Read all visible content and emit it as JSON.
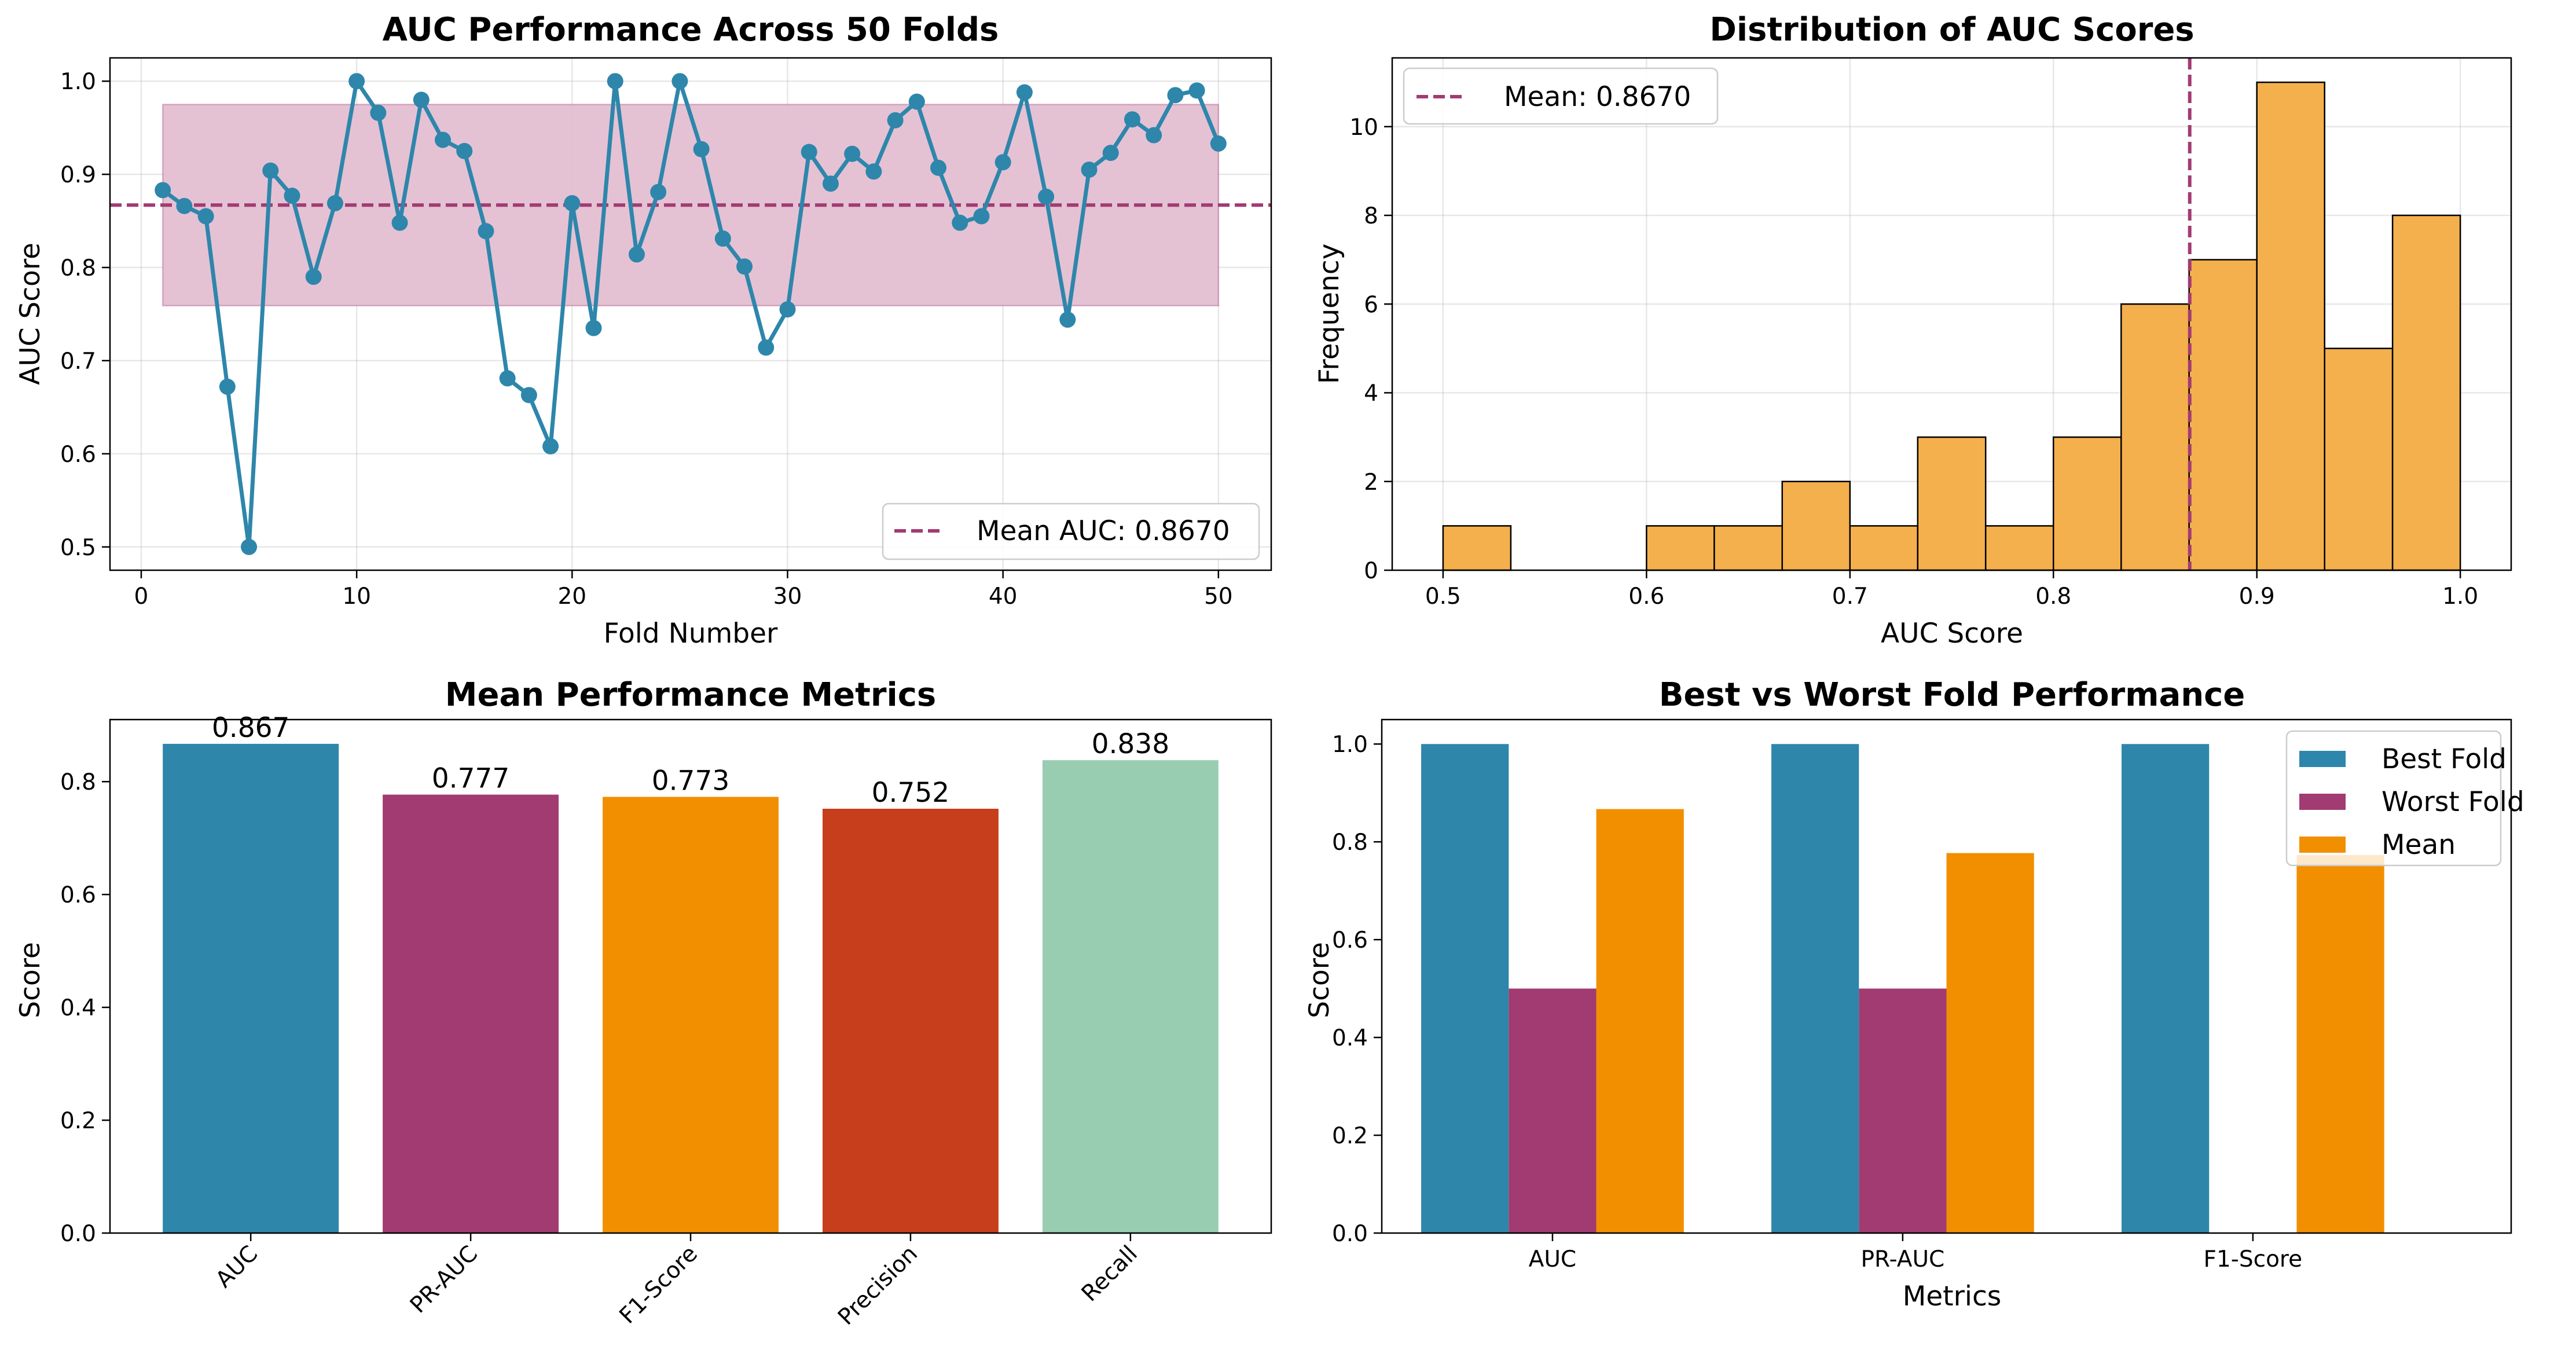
{
  "colors": {
    "blue": "#2e86ab",
    "magenta": "#a23b72",
    "orange": "#f18f01",
    "hist": "#f4b04c",
    "red": "#c73e1d",
    "mint": "#98cdb2",
    "band": "#e3bfd2"
  },
  "chart_data": [
    {
      "type": "line",
      "title": "AUC Performance Across 50 Folds",
      "xlabel": "Fold Number",
      "ylabel": "AUC Score",
      "xlim": [
        -1.45,
        52.45
      ],
      "ylim": [
        0.475,
        1.025
      ],
      "xticks": [
        0,
        10,
        20,
        30,
        40,
        50
      ],
      "yticks": [
        0.5,
        0.6,
        0.7,
        0.8,
        0.9,
        1.0
      ],
      "grid": true,
      "x": [
        1,
        2,
        3,
        4,
        5,
        6,
        7,
        8,
        9,
        10,
        11,
        12,
        13,
        14,
        15,
        16,
        17,
        18,
        19,
        20,
        21,
        22,
        23,
        24,
        25,
        26,
        27,
        28,
        29,
        30,
        31,
        32,
        33,
        34,
        35,
        36,
        37,
        38,
        39,
        40,
        41,
        42,
        43,
        44,
        45,
        46,
        47,
        48,
        49,
        50
      ],
      "series": [
        {
          "values": [
            0.883,
            0.866,
            0.855,
            0.672,
            0.5,
            0.904,
            0.877,
            0.79,
            0.869,
            1.0,
            0.966,
            0.848,
            0.98,
            0.937,
            0.925,
            0.839,
            0.681,
            0.663,
            0.608,
            0.869,
            0.735,
            1.0,
            0.814,
            0.881,
            1.0,
            0.927,
            0.831,
            0.801,
            0.714,
            0.755,
            0.924,
            0.89,
            0.922,
            0.903,
            0.958,
            0.978,
            0.907,
            0.848,
            0.855,
            0.913,
            0.988,
            0.876,
            0.744,
            0.905,
            0.923,
            0.959,
            0.942,
            0.985,
            0.99,
            0.933
          ]
        }
      ],
      "mean_line": {
        "value": 0.867,
        "label": "Mean AUC: 0.8670"
      },
      "band": {
        "x_from": 1,
        "x_to": 50,
        "y_from": 0.759,
        "y_to": 0.975
      },
      "legend_position": "lower right"
    },
    {
      "type": "bar",
      "title": "Distribution of AUC Scores",
      "xlabel": "AUC Score",
      "ylabel": "Frequency",
      "xlim": [
        0.475,
        1.025
      ],
      "ylim": [
        0,
        11.55
      ],
      "xticks": [
        0.5,
        0.6,
        0.7,
        0.8,
        0.9,
        1.0
      ],
      "yticks": [
        0,
        2,
        4,
        6,
        8,
        10
      ],
      "grid": true,
      "bin_edges": [
        0.5,
        0.5333,
        0.5667,
        0.6,
        0.6333,
        0.6667,
        0.7,
        0.7333,
        0.7667,
        0.8,
        0.8333,
        0.8667,
        0.9,
        0.9333,
        0.9667,
        1.0
      ],
      "counts": [
        1,
        0,
        0,
        1,
        1,
        2,
        1,
        3,
        1,
        3,
        6,
        7,
        11,
        5,
        8
      ],
      "mean_line": {
        "value": 0.867,
        "label": "Mean: 0.8670"
      },
      "legend_position": "upper left"
    },
    {
      "type": "bar",
      "title": "Mean Performance Metrics",
      "xlabel": "",
      "ylabel": "Score",
      "ylim": [
        0,
        0.91
      ],
      "yticks": [
        0.0,
        0.2,
        0.4,
        0.6,
        0.8
      ],
      "categories": [
        "AUC",
        "PR-AUC",
        "F1-Score",
        "Precision",
        "Recall"
      ],
      "values": [
        0.867,
        0.777,
        0.773,
        0.752,
        0.838
      ],
      "value_labels": [
        "0.867",
        "0.777",
        "0.773",
        "0.752",
        "0.838"
      ]
    },
    {
      "type": "bar",
      "title": "Best vs Worst Fold Performance",
      "xlabel": "Metrics",
      "ylabel": "Score",
      "ylim": [
        0,
        1.05
      ],
      "yticks": [
        0.0,
        0.2,
        0.4,
        0.6,
        0.8,
        1.0
      ],
      "categories": [
        "AUC",
        "PR-AUC",
        "F1-Score"
      ],
      "series": [
        {
          "name": "Best Fold",
          "values": [
            1.0,
            1.0,
            1.0
          ]
        },
        {
          "name": "Worst Fold",
          "values": [
            0.5,
            0.5,
            0.0
          ]
        },
        {
          "name": "Mean",
          "values": [
            0.867,
            0.777,
            0.773
          ]
        }
      ],
      "legend_position": "upper right"
    }
  ]
}
